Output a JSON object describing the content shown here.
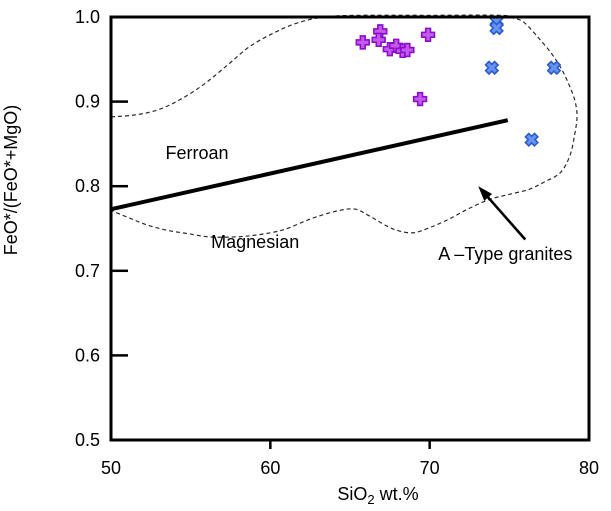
{
  "page": {
    "background": "#ffffff"
  },
  "chart_data": {
    "type": "scatter",
    "title": "",
    "xlabel": "SiO2 wt.%",
    "xlabel_parts": [
      {
        "text": "SiO",
        "subscript": false
      },
      {
        "text": "2",
        "subscript": true
      },
      {
        "text": " wt.%",
        "subscript": false
      }
    ],
    "ylabel": "FeO*/(FeO*+MgO)",
    "xlim": [
      50,
      80
    ],
    "ylim": [
      0.5,
      1.0
    ],
    "xticks": [
      {
        "value": 50,
        "label": "50"
      },
      {
        "value": 60,
        "label": "60"
      },
      {
        "value": 70,
        "label": "70"
      },
      {
        "value": 80,
        "label": "80"
      }
    ],
    "yticks": [
      {
        "value": 0.5,
        "label": "0.5"
      },
      {
        "value": 0.6,
        "label": "0.6"
      },
      {
        "value": 0.7,
        "label": "0.7"
      },
      {
        "value": 0.8,
        "label": "0.8"
      },
      {
        "value": 0.9,
        "label": "0.9"
      },
      {
        "value": 1.0,
        "label": "1.0"
      }
    ],
    "grid": false,
    "legend_position": "none",
    "series": [
      {
        "name": "magenta-plus-samples",
        "marker": "plus",
        "fill": "#c558ee",
        "stroke": "#8a0fc9",
        "points": [
          [
            65.8,
            0.97
          ],
          [
            66.9,
            0.983
          ],
          [
            66.8,
            0.973
          ],
          [
            67.5,
            0.962
          ],
          [
            67.9,
            0.966
          ],
          [
            68.3,
            0.96
          ],
          [
            68.6,
            0.961
          ],
          [
            69.9,
            0.979
          ],
          [
            69.4,
            0.903
          ]
        ]
      },
      {
        "name": "blue-x-samples",
        "marker": "x",
        "fill": "#6494f0",
        "stroke": "#2e59cf",
        "points": [
          [
            74.2,
            0.995
          ],
          [
            74.2,
            0.987
          ],
          [
            73.9,
            0.94
          ],
          [
            77.8,
            0.94
          ],
          [
            76.4,
            0.855
          ]
        ]
      }
    ],
    "boundary_line": {
      "name": "ferroan-magnesian-divider",
      "from": [
        50.05,
        0.773
      ],
      "to": [
        74.9,
        0.878
      ],
      "color": "#000000",
      "width": 4
    },
    "field_outline": {
      "name": "a-type-granites-field",
      "style": "dashed",
      "color": "#2a2a2a",
      "points": [
        [
          50.0,
          0.882
        ],
        [
          51.4,
          0.884
        ],
        [
          52.9,
          0.89
        ],
        [
          54.3,
          0.902
        ],
        [
          55.8,
          0.92
        ],
        [
          57.3,
          0.943
        ],
        [
          58.7,
          0.965
        ],
        [
          60.2,
          0.981
        ],
        [
          61.7,
          0.993
        ],
        [
          63.4,
          1.0
        ],
        [
          65.6,
          1.002
        ],
        [
          70.0,
          1.002
        ],
        [
          74.4,
          1.002
        ],
        [
          75.2,
          0.999
        ],
        [
          75.9,
          0.994
        ],
        [
          76.8,
          0.976
        ],
        [
          77.6,
          0.958
        ],
        [
          78.2,
          0.941
        ],
        [
          78.7,
          0.922
        ],
        [
          79.1,
          0.902
        ],
        [
          79.25,
          0.883
        ],
        [
          79.1,
          0.861
        ],
        [
          78.8,
          0.836
        ],
        [
          78.2,
          0.816
        ],
        [
          77.2,
          0.805
        ],
        [
          76.2,
          0.796
        ],
        [
          74.9,
          0.79
        ],
        [
          73.7,
          0.784
        ],
        [
          72.4,
          0.773
        ],
        [
          71.2,
          0.761
        ],
        [
          70.0,
          0.751
        ],
        [
          69.0,
          0.745
        ],
        [
          68.1,
          0.747
        ],
        [
          67.3,
          0.753
        ],
        [
          66.2,
          0.765
        ],
        [
          65.3,
          0.773
        ],
        [
          64.25,
          0.771
        ],
        [
          63.1,
          0.765
        ],
        [
          62.2,
          0.759
        ],
        [
          61.2,
          0.751
        ],
        [
          60.3,
          0.746
        ],
        [
          59.0,
          0.742
        ],
        [
          57.7,
          0.74
        ],
        [
          56.2,
          0.74
        ],
        [
          54.8,
          0.744
        ],
        [
          53.5,
          0.748
        ],
        [
          52.3,
          0.754
        ],
        [
          51.2,
          0.762
        ],
        [
          50.05,
          0.771
        ]
      ]
    },
    "annotations": [
      {
        "id": "ferroan",
        "text": "Ferroan",
        "x": 55.4,
        "y": 0.839
      },
      {
        "id": "magnesian",
        "text": "Magnesian",
        "x": 59.05,
        "y": 0.734
      },
      {
        "id": "a-type-granites",
        "text": "A –Type granites",
        "x": 74.75,
        "y": 0.72,
        "arrow": {
          "from": [
            76.0,
            0.737
          ],
          "to": [
            73.05,
            0.8
          ]
        }
      }
    ]
  }
}
